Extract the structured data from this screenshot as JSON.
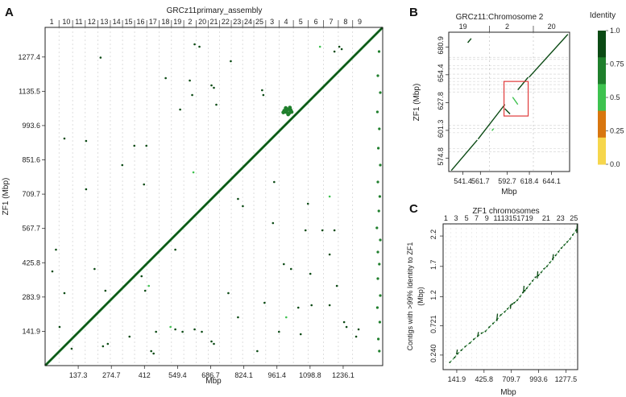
{
  "panels": {
    "A": {
      "letter": "A"
    },
    "B": {
      "letter": "B"
    },
    "C": {
      "letter": "C"
    }
  },
  "legend": {
    "title": "Identity",
    "ticks": [
      "1.0",
      "0.75",
      "0.5",
      "0.25",
      "0.0"
    ],
    "colors": [
      "#0b4a14",
      "#1f7f2c",
      "#3ec24f",
      "#d8760f",
      "#f6d64c"
    ]
  },
  "chart_data": [
    {
      "panel": "A",
      "type": "scatter",
      "title": "GRCz11primary_assembly",
      "xlabel": "Mbp",
      "ylabel": "ZF1 (Mbp)",
      "xlim": [
        0,
        1400
      ],
      "ylim": [
        0,
        1400
      ],
      "grid": true,
      "x_ticks": [
        "137.3",
        "274.7",
        "412",
        "549.4",
        "686.7",
        "824.1",
        "961.4",
        "1098.8",
        "1236.1"
      ],
      "x_tick_values": [
        137.3,
        274.7,
        412,
        549.4,
        686.7,
        824.1,
        961.4,
        1098.8,
        1236.1
      ],
      "y_ticks": [
        "141.9",
        "283.9",
        "425.8",
        "567.7",
        "709.7",
        "851.6",
        "993.6",
        "1135.5",
        "1277.4"
      ],
      "y_tick_values": [
        141.9,
        283.9,
        425.8,
        567.7,
        709.7,
        851.6,
        993.6,
        1135.5,
        1277.4
      ],
      "top_chromosome_labels": [
        "1",
        "10",
        "11",
        "12",
        "13",
        "14",
        "15",
        "16",
        "17",
        "18",
        "19",
        "2",
        "20",
        "21",
        "22",
        "23",
        "24",
        "25",
        "3",
        "4",
        "5",
        "6",
        "7",
        "8",
        "9"
      ],
      "top_chromosome_centers": [
        27,
        88,
        140,
        193,
        245,
        296,
        346,
        396,
        447,
        499,
        549,
        601,
        652,
        700,
        748,
        796,
        842,
        889,
        941,
        999,
        1060,
        1123,
        1186,
        1246,
        1305
      ],
      "main_diagonal": {
        "x": [
          0,
          1400
        ],
        "y": [
          0,
          1400
        ]
      },
      "cluster_points": [
        [
          1000,
          1050
        ],
        [
          1005,
          1060
        ],
        [
          1012,
          1045
        ],
        [
          992,
          1055
        ],
        [
          1018,
          1058
        ],
        [
          1008,
          1040
        ],
        [
          998,
          1066
        ],
        [
          1022,
          1050
        ],
        [
          988,
          1048
        ],
        [
          1015,
          1068
        ]
      ],
      "off_diagonal_points": [
        [
          80,
          940
        ],
        [
          170,
          930
        ],
        [
          230,
          1275
        ],
        [
          320,
          830
        ],
        [
          370,
          910
        ],
        [
          420,
          910
        ],
        [
          410,
          750
        ],
        [
          500,
          1190
        ],
        [
          560,
          1060
        ],
        [
          600,
          1180
        ],
        [
          610,
          1120
        ],
        [
          690,
          1160
        ],
        [
          700,
          1150
        ],
        [
          710,
          1080
        ],
        [
          770,
          1260
        ],
        [
          170,
          730
        ],
        [
          205,
          400
        ],
        [
          250,
          310
        ],
        [
          400,
          370
        ],
        [
          415,
          310
        ],
        [
          540,
          480
        ],
        [
          760,
          300
        ],
        [
          800,
          690
        ],
        [
          820,
          660
        ],
        [
          945,
          590
        ],
        [
          1080,
          560
        ],
        [
          1090,
          670
        ],
        [
          1150,
          560
        ],
        [
          1200,
          560
        ],
        [
          1180,
          460
        ],
        [
          1210,
          330
        ],
        [
          1240,
          180
        ],
        [
          1250,
          160
        ],
        [
          1290,
          120
        ],
        [
          1300,
          150
        ],
        [
          1180,
          250
        ],
        [
          1105,
          250
        ],
        [
          1050,
          240
        ],
        [
          1060,
          130
        ],
        [
          910,
          260
        ],
        [
          970,
          140
        ],
        [
          880,
          60
        ],
        [
          690,
          100
        ],
        [
          700,
          90
        ],
        [
          650,
          140
        ],
        [
          620,
          150
        ],
        [
          540,
          150
        ],
        [
          570,
          140
        ],
        [
          460,
          140
        ],
        [
          350,
          120
        ],
        [
          260,
          90
        ],
        [
          240,
          80
        ],
        [
          110,
          70
        ],
        [
          60,
          160
        ],
        [
          30,
          390
        ],
        [
          45,
          480
        ],
        [
          80,
          300
        ],
        [
          440,
          60
        ],
        [
          450,
          50
        ],
        [
          800,
          200
        ],
        [
          1100,
          380
        ],
        [
          1020,
          400
        ],
        [
          990,
          420
        ],
        [
          900,
          1140
        ],
        [
          905,
          1120
        ],
        [
          950,
          760
        ],
        [
          640,
          1320
        ],
        [
          620,
          1330
        ],
        [
          1200,
          1300
        ],
        [
          1220,
          1320
        ],
        [
          1230,
          1310
        ]
      ],
      "edge_points": [
        [
          1385,
          1300
        ],
        [
          1380,
          1200
        ],
        [
          1390,
          1130
        ],
        [
          1378,
          1050
        ],
        [
          1386,
          980
        ],
        [
          1382,
          900
        ],
        [
          1390,
          830
        ],
        [
          1380,
          760
        ],
        [
          1388,
          700
        ],
        [
          1384,
          640
        ],
        [
          1376,
          570
        ],
        [
          1390,
          520
        ],
        [
          1380,
          470
        ],
        [
          1386,
          420
        ],
        [
          1380,
          360
        ],
        [
          1390,
          290
        ],
        [
          1378,
          240
        ],
        [
          1388,
          180
        ],
        [
          1382,
          110
        ],
        [
          1386,
          60
        ]
      ],
      "light_points": [
        [
          615,
          800
        ],
        [
          1180,
          700
        ],
        [
          1140,
          1320
        ],
        [
          1000,
          200
        ],
        [
          520,
          160
        ],
        [
          430,
          330
        ]
      ]
    },
    {
      "panel": "B",
      "type": "scatter",
      "title": "GRCz11:Chromosome 2",
      "xlabel": "Mbp",
      "ylabel": "ZF1 (Mbp)",
      "xlim": [
        525,
        665
      ],
      "ylim": [
        562,
        695
      ],
      "grid": true,
      "x_ticks": [
        "541.4",
        "561.7",
        "592.7",
        "618.4",
        "644.1"
      ],
      "x_tick_values": [
        541.4,
        561.7,
        592.7,
        618.4,
        644.1
      ],
      "y_ticks": [
        "574.8",
        "601.3",
        "627.8",
        "654.4",
        "680.9"
      ],
      "y_tick_values": [
        574.8,
        601.3,
        627.8,
        654.4,
        680.9
      ],
      "top_chromosome_labels": [
        "19",
        "2",
        "20"
      ],
      "top_chromosome_positions": [
        541.4,
        592.7,
        644.1
      ],
      "chromosome_boundaries": [
        572,
        623
      ],
      "segments": [
        {
          "x": [
            528,
            558
          ],
          "y": [
            563,
            592
          ],
          "identity": "high"
        },
        {
          "x": [
            559,
            590
          ],
          "y": [
            593,
            626
          ],
          "identity": "high"
        },
        {
          "x": [
            590,
            596
          ],
          "y": [
            622,
            617
          ],
          "identity": "high",
          "inverted": true
        },
        {
          "x": [
            599,
            605
          ],
          "y": [
            633,
            626
          ],
          "identity": "medium",
          "inverted": true
        },
        {
          "x": [
            605,
            617
          ],
          "y": [
            640,
            652
          ],
          "identity": "high"
        },
        {
          "x": [
            618,
            663
          ],
          "y": [
            652,
            693
          ],
          "identity": "high"
        },
        {
          "x": [
            547,
            551
          ],
          "y": [
            685,
            689
          ],
          "identity": "high"
        },
        {
          "x": [
            575,
            577
          ],
          "y": [
            601,
            603
          ],
          "identity": "medium"
        }
      ],
      "highlight_box": {
        "x": [
          589,
          617
        ],
        "y": [
          615,
          648
        ]
      },
      "dashed_rows": [
        581,
        584,
        599,
        603,
        606,
        638,
        641,
        645,
        648,
        651,
        655,
        660,
        663,
        669,
        671
      ]
    },
    {
      "panel": "C",
      "type": "scatter",
      "title": "ZF1 chromosomes",
      "xlabel": "Mbp",
      "ylabel": "Contigs with >99% Identity to ZF1\n(Mbp)",
      "xlim": [
        0,
        1400
      ],
      "ylim": [
        0,
        2.4
      ],
      "grid": true,
      "x_ticks": [
        "141.9",
        "425.8",
        "709.7",
        "993.6",
        "1277.5"
      ],
      "x_tick_values": [
        141.9,
        425.8,
        709.7,
        993.6,
        1277.5
      ],
      "y_ticks": [
        "0.240",
        "0.721",
        "1.2",
        "1.7",
        "2.2"
      ],
      "y_tick_values": [
        0.24,
        0.721,
        1.2,
        1.7,
        2.2
      ],
      "top_chromosome_labels": [
        "1",
        "3",
        "5",
        "7",
        "9",
        "11",
        "13",
        "15",
        "17",
        "19",
        "21",
        "23",
        "25"
      ],
      "top_chromosome_positions": [
        28,
        134,
        244,
        348,
        455,
        563,
        642,
        725,
        808,
        895,
        1072,
        1222,
        1360
      ],
      "points": [
        [
          70,
          0.12
        ],
        [
          120,
          0.2
        ],
        [
          150,
          0.26
        ],
        [
          190,
          0.32
        ],
        [
          230,
          0.38
        ],
        [
          280,
          0.44
        ],
        [
          320,
          0.5
        ],
        [
          360,
          0.55
        ],
        [
          400,
          0.6
        ],
        [
          440,
          0.63
        ],
        [
          480,
          0.7
        ],
        [
          520,
          0.76
        ],
        [
          560,
          0.82
        ],
        [
          600,
          0.9
        ],
        [
          640,
          0.95
        ],
        [
          670,
          1.0
        ],
        [
          700,
          1.05
        ],
        [
          720,
          1.08
        ],
        [
          740,
          1.1
        ],
        [
          770,
          1.14
        ],
        [
          800,
          1.2
        ],
        [
          830,
          1.27
        ],
        [
          850,
          1.3
        ],
        [
          870,
          1.34
        ],
        [
          900,
          1.4
        ],
        [
          930,
          1.46
        ],
        [
          960,
          1.52
        ],
        [
          990,
          1.55
        ],
        [
          1020,
          1.6
        ],
        [
          1050,
          1.66
        ],
        [
          1080,
          1.7
        ],
        [
          1110,
          1.76
        ],
        [
          1140,
          1.82
        ],
        [
          1170,
          1.88
        ],
        [
          1200,
          1.94
        ],
        [
          1230,
          2.0
        ],
        [
          1260,
          2.05
        ],
        [
          1290,
          2.1
        ],
        [
          1320,
          2.15
        ],
        [
          1350,
          2.22
        ],
        [
          1385,
          2.3
        ]
      ],
      "step_segments": [
        {
          "x": [
            140,
            148
          ],
          "y": [
            0.25,
            0.33
          ]
        },
        {
          "x": [
            360,
            368
          ],
          "y": [
            0.55,
            0.62
          ]
        },
        {
          "x": [
            558,
            566
          ],
          "y": [
            0.8,
            0.92
          ]
        },
        {
          "x": [
            700,
            706
          ],
          "y": [
            1.0,
            1.08
          ]
        },
        {
          "x": [
            835,
            842
          ],
          "y": [
            1.26,
            1.38
          ]
        },
        {
          "x": [
            980,
            985
          ],
          "y": [
            1.5,
            1.62
          ]
        },
        {
          "x": [
            1140,
            1147
          ],
          "y": [
            1.8,
            1.9
          ]
        },
        {
          "x": [
            1390,
            1396
          ],
          "y": [
            2.25,
            2.4
          ]
        }
      ]
    }
  ]
}
